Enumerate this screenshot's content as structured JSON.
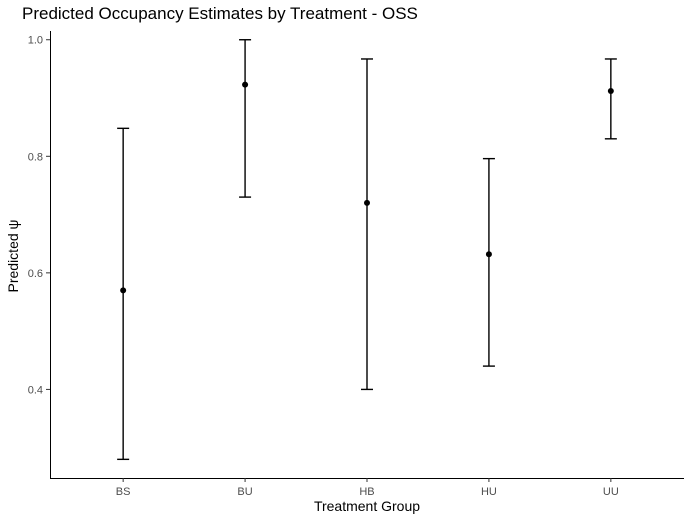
{
  "chart_data": {
    "type": "scatter",
    "title": "Predicted Occupancy Estimates by Treatment - OSS",
    "xlabel": "Treatment Group",
    "ylabel": "Predicted ψ",
    "categories": [
      "BS",
      "BU",
      "HB",
      "HU",
      "UU"
    ],
    "values": [
      0.57,
      0.923,
      0.72,
      0.632,
      0.912
    ],
    "lower": [
      0.28,
      0.73,
      0.4,
      0.44,
      0.83
    ],
    "upper": [
      0.848,
      1.0,
      0.967,
      0.796,
      0.967
    ],
    "yticks": [
      0.4,
      0.6,
      0.8,
      1.0
    ],
    "ytick_labels": [
      "0.4",
      "0.6",
      "0.8",
      "1.0"
    ],
    "ylim": [
      0.248,
      1.015
    ],
    "grid": false,
    "legend": "none"
  }
}
